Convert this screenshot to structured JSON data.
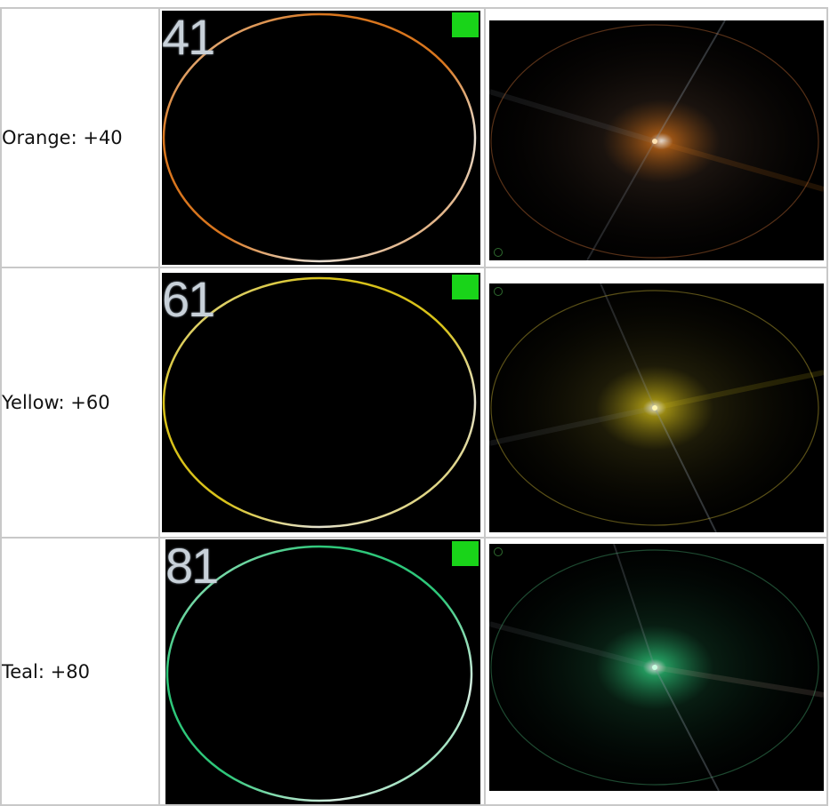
{
  "rows": [
    {
      "label": "Orange: +40",
      "number": "41",
      "color": "#d9761e",
      "color_light": "#e8e0d4"
    },
    {
      "label": "Yellow: +60",
      "number": "61",
      "color": "#d8c21a",
      "color_light": "#e4e2d0"
    },
    {
      "label": "Teal: +80",
      "number": "81",
      "color": "#2ec77a",
      "color_light": "#d8eee2"
    }
  ],
  "icons": {
    "status": "green-square-icon",
    "indicator": "small-circle-icon"
  }
}
